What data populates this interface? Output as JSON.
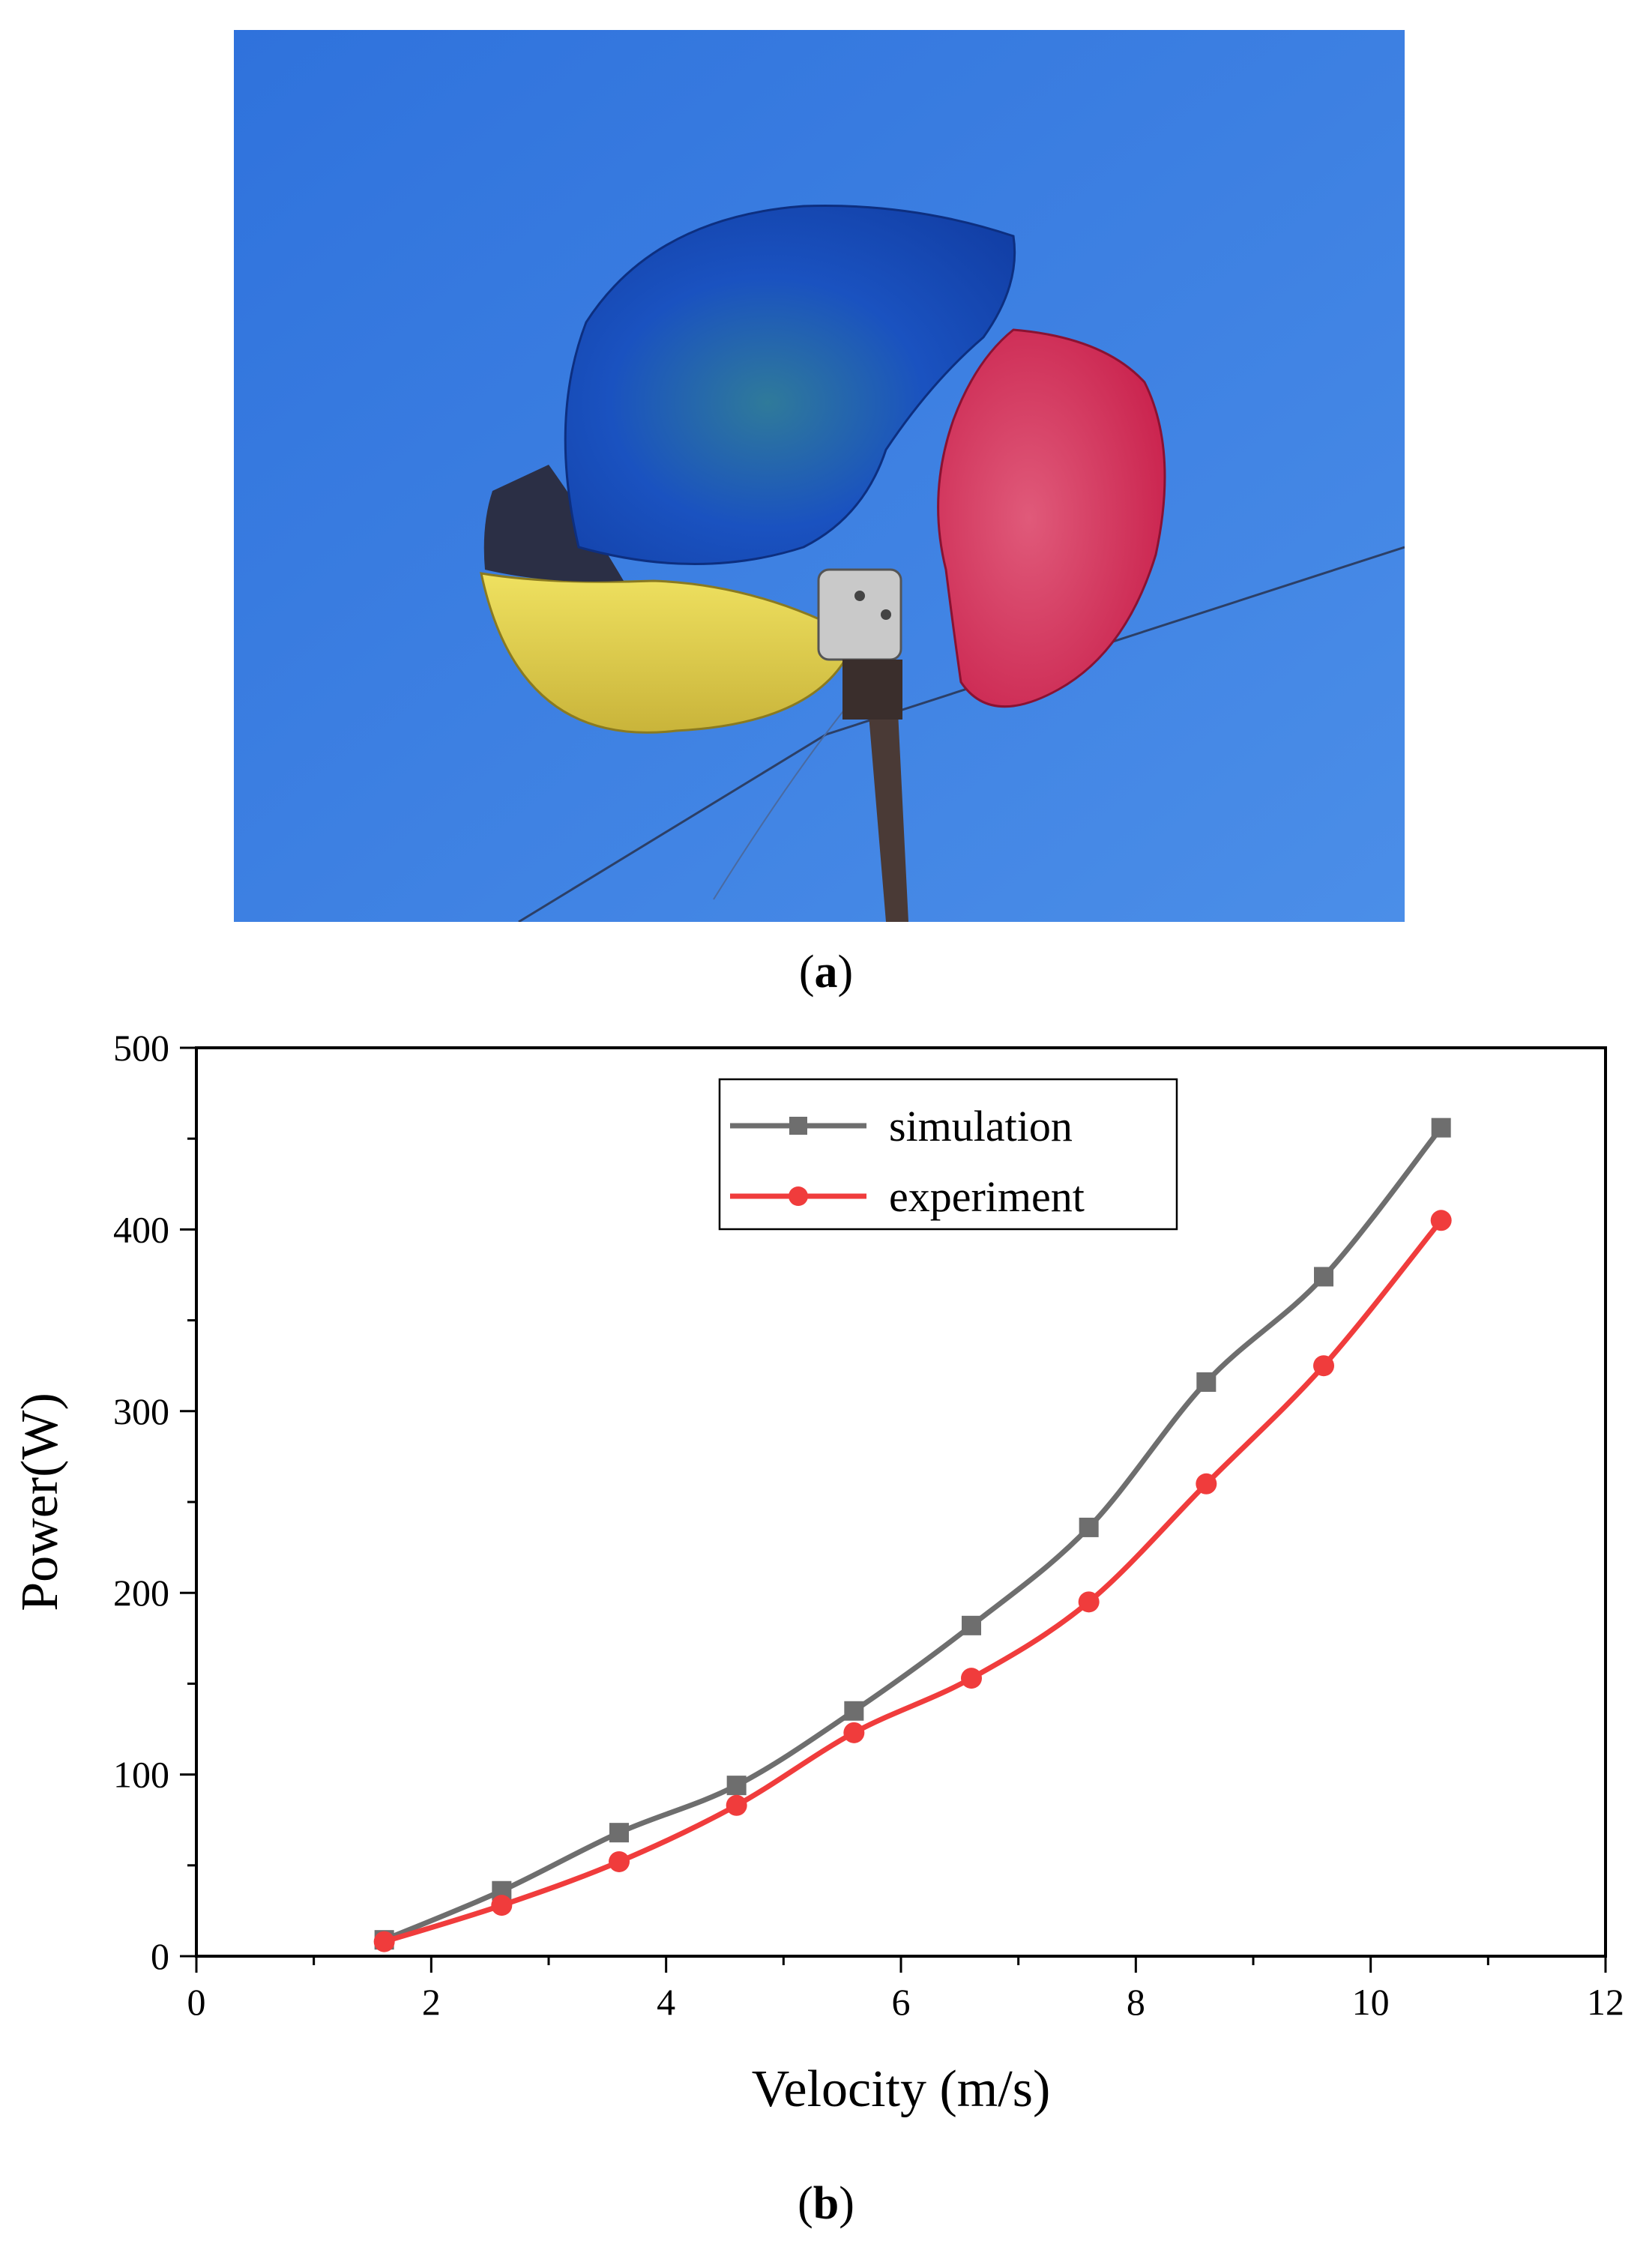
{
  "panels": {
    "a": {
      "open": "(",
      "letter": "a",
      "close": ")"
    },
    "b": {
      "open": "(",
      "letter": "b",
      "close": ")"
    }
  },
  "photo": {
    "subject": "wind-turbine-rotor-icon",
    "sky_color": "#3d7fe0",
    "blade_colors": [
      "#1c4fc4",
      "#d42a55",
      "#e3d23a"
    ]
  },
  "chart_data": {
    "type": "line",
    "xlabel": "Velocity (m/s)",
    "ylabel": "Power(W)",
    "xlim": [
      0,
      12
    ],
    "ylim": [
      0,
      500
    ],
    "xticks": [
      0,
      2,
      4,
      6,
      8,
      10,
      12
    ],
    "yticks": [
      0,
      100,
      200,
      300,
      400,
      500
    ],
    "grid": false,
    "legend_position": "top-right",
    "series": [
      {
        "name": "simulation",
        "color": "#6e6e6e",
        "marker": "square",
        "x": [
          1.6,
          2.6,
          3.6,
          4.6,
          5.6,
          6.6,
          7.6,
          8.6,
          9.6,
          10.6
        ],
        "y": [
          9,
          36,
          68,
          94,
          135,
          182,
          236,
          316,
          374,
          456
        ]
      },
      {
        "name": "experiment",
        "color": "#f03c3c",
        "marker": "circle",
        "x": [
          1.6,
          2.6,
          3.6,
          4.6,
          5.6,
          6.6,
          7.6,
          8.6,
          9.6,
          10.6
        ],
        "y": [
          8,
          28,
          52,
          83,
          123,
          153,
          195,
          260,
          325,
          405
        ]
      }
    ]
  }
}
